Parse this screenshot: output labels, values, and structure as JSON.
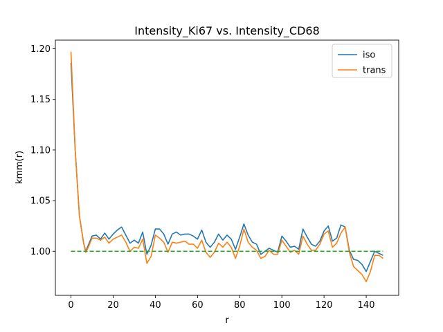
{
  "chart_data": {
    "type": "line",
    "title": "Intensity_Ki67 vs. Intensity_CD68",
    "xlabel": "r",
    "ylabel": "kmm(r)",
    "xlim": [
      -7.4,
      155.4
    ],
    "ylim": [
      0.9565,
      1.2085
    ],
    "xticks": [
      0,
      20,
      40,
      60,
      80,
      100,
      120,
      140
    ],
    "yticks": [
      1.0,
      1.05,
      1.1,
      1.15,
      1.2
    ],
    "xtick_labels": [
      "0",
      "20",
      "40",
      "60",
      "80",
      "100",
      "120",
      "140"
    ],
    "ytick_labels": [
      "1.00",
      "1.05",
      "1.10",
      "1.15",
      "1.20"
    ],
    "grid": false,
    "legend": {
      "position": "top-right",
      "entries": [
        "iso",
        "trans"
      ]
    },
    "series": [
      {
        "name": "iso",
        "color": "#1f77b4",
        "x": [
          0,
          2,
          4,
          6,
          7,
          8,
          10,
          12,
          14,
          16,
          18,
          20,
          22,
          24,
          26,
          28,
          30,
          32,
          34,
          36,
          38,
          40,
          42,
          44,
          46,
          48,
          50,
          52,
          54,
          56,
          58,
          60,
          62,
          64,
          66,
          68,
          70,
          72,
          74,
          76,
          78,
          80,
          82,
          84,
          86,
          88,
          90,
          92,
          94,
          96,
          98,
          100,
          102,
          104,
          106,
          108,
          110,
          112,
          114,
          116,
          118,
          120,
          122,
          124,
          126,
          128,
          130,
          132,
          134,
          136,
          138,
          140,
          142,
          144,
          146,
          148
        ],
        "y": [
          1.186,
          1.1,
          1.035,
          1.008,
          1.0,
          1.005,
          1.015,
          1.016,
          1.012,
          1.018,
          1.012,
          1.017,
          1.021,
          1.024,
          1.016,
          1.008,
          1.011,
          1.008,
          1.019,
          0.997,
          1.006,
          1.022,
          1.022,
          1.017,
          1.007,
          1.017,
          1.019,
          1.016,
          1.017,
          1.017,
          1.015,
          1.012,
          1.021,
          1.009,
          1.004,
          1.009,
          1.017,
          1.011,
          1.016,
          1.012,
          1.002,
          1.014,
          1.027,
          1.016,
          1.009,
          1.007,
          0.997,
          1.0,
          1.003,
          1.001,
          0.999,
          1.015,
          1.01,
          1.004,
          1.005,
          1.002,
          1.022,
          1.014,
          1.007,
          1.005,
          1.01,
          1.02,
          1.025,
          1.01,
          1.013,
          1.026,
          1.024,
          1.001,
          0.992,
          0.991,
          0.987,
          0.98,
          0.99,
          1.0,
          0.998,
          0.996
        ]
      },
      {
        "name": "trans",
        "color": "#ff7f0e",
        "x": [
          0,
          2,
          4,
          6,
          7,
          8,
          10,
          12,
          14,
          16,
          18,
          20,
          22,
          24,
          26,
          28,
          30,
          32,
          34,
          36,
          38,
          40,
          42,
          44,
          46,
          48,
          50,
          52,
          54,
          56,
          58,
          60,
          62,
          64,
          66,
          68,
          70,
          72,
          74,
          76,
          78,
          80,
          82,
          84,
          86,
          88,
          90,
          92,
          94,
          96,
          98,
          100,
          102,
          104,
          106,
          108,
          110,
          112,
          114,
          116,
          118,
          120,
          122,
          124,
          126,
          128,
          130,
          132,
          134,
          136,
          138,
          140,
          142,
          144,
          146,
          148
        ],
        "y": [
          1.197,
          1.1,
          1.035,
          1.008,
          0.999,
          1.003,
          1.013,
          1.013,
          1.011,
          1.014,
          1.008,
          1.012,
          1.014,
          1.016,
          1.009,
          1.0,
          1.004,
          1.003,
          1.012,
          0.988,
          0.995,
          1.016,
          1.013,
          1.009,
          0.999,
          1.009,
          1.008,
          1.009,
          1.01,
          1.007,
          1.007,
          1.003,
          1.011,
          0.999,
          0.994,
          0.999,
          1.008,
          1.004,
          1.009,
          1.004,
          0.993,
          1.005,
          1.022,
          1.009,
          1.004,
          1.001,
          0.993,
          0.995,
          1.001,
          0.997,
          0.997,
          1.011,
          1.005,
          0.999,
          1.001,
          0.997,
          1.015,
          1.007,
          1.001,
          1.001,
          1.007,
          1.017,
          1.02,
          1.004,
          1.008,
          1.018,
          1.024,
          0.999,
          0.985,
          0.981,
          0.977,
          0.97,
          0.98,
          0.996,
          0.996,
          0.993
        ]
      },
      {
        "name": "",
        "color": "#2ca02c",
        "dashed": true,
        "x": [
          0,
          148
        ],
        "y": [
          1.0,
          1.0
        ]
      }
    ]
  }
}
